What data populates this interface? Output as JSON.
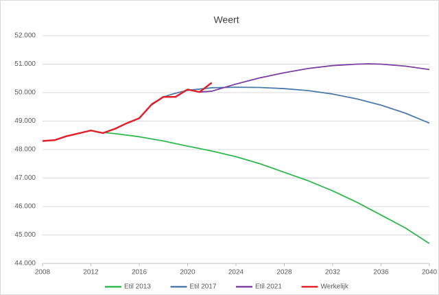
{
  "chart_data": {
    "type": "line",
    "title": "Weert",
    "xlim": [
      2008,
      2040
    ],
    "xticks": [
      2008,
      2012,
      2016,
      2020,
      2024,
      2028,
      2032,
      2036,
      2040
    ],
    "ylim": [
      44000,
      52000
    ],
    "yticks": [
      {
        "value": 44000,
        "label": "44.000"
      },
      {
        "value": 45000,
        "label": "45.000"
      },
      {
        "value": 46000,
        "label": "46.000"
      },
      {
        "value": 47000,
        "label": "47.000"
      },
      {
        "value": 48000,
        "label": "48.000"
      },
      {
        "value": 49000,
        "label": "49.000"
      },
      {
        "value": 50000,
        "label": "50.000"
      },
      {
        "value": 51000,
        "label": "51.000"
      },
      {
        "value": 52000,
        "label": "52.000"
      }
    ],
    "grid": true,
    "legend": "bottom",
    "series": [
      {
        "name": "Etil 2013",
        "color": "#2eb84e",
        "x": [
          2013,
          2014,
          2016,
          2018,
          2020,
          2022,
          2024,
          2026,
          2028,
          2030,
          2032,
          2034,
          2036,
          2038,
          2040
        ],
        "values": [
          48600,
          48560,
          48450,
          48300,
          48120,
          47950,
          47750,
          47500,
          47200,
          46900,
          46550,
          46150,
          45700,
          45250,
          44700
        ]
      },
      {
        "name": "Etil 2017",
        "color": "#4a7aa8",
        "x": [
          2017,
          2018,
          2019,
          2020,
          2022,
          2024,
          2026,
          2028,
          2030,
          2032,
          2034,
          2036,
          2038,
          2040
        ],
        "values": [
          49600,
          49850,
          49980,
          50080,
          50170,
          50190,
          50180,
          50140,
          50070,
          49950,
          49780,
          49560,
          49280,
          48930
        ]
      },
      {
        "name": "Etil 2021",
        "color": "#7a3fa0",
        "x": [
          2021,
          2022,
          2024,
          2026,
          2028,
          2030,
          2032,
          2034,
          2035,
          2036,
          2038,
          2040
        ],
        "values": [
          50020,
          50050,
          50300,
          50520,
          50700,
          50850,
          50950,
          51000,
          51010,
          51000,
          50930,
          50810
        ]
      },
      {
        "name": "Werkelijk",
        "color": "#e0202a",
        "x": [
          2008,
          2009,
          2010,
          2011,
          2012,
          2013,
          2014,
          2015,
          2016,
          2017,
          2018,
          2019,
          2020,
          2021,
          2022
        ],
        "values": [
          48300,
          48330,
          48470,
          48570,
          48670,
          48580,
          48730,
          48930,
          49100,
          49570,
          49850,
          49850,
          50110,
          50020,
          50350
        ]
      }
    ]
  }
}
